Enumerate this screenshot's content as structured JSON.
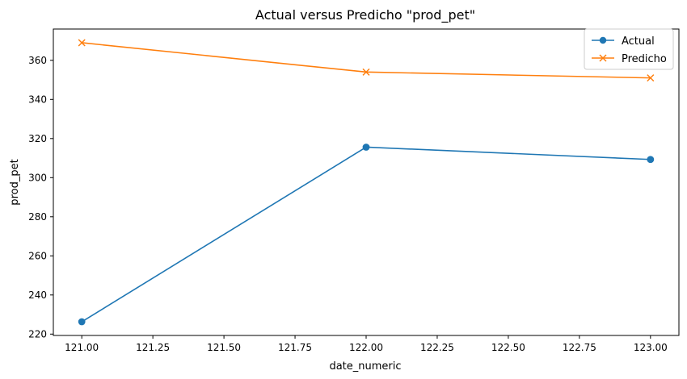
{
  "chart_data": {
    "type": "line",
    "title": "Actual versus Predicho \"prod_pet\"",
    "xlabel": "date_numeric",
    "ylabel": "prod_pet",
    "x": [
      121.0,
      122.0,
      123.0
    ],
    "xlim": [
      120.9,
      123.1
    ],
    "ylim": [
      219.3,
      376.0
    ],
    "xticks": [
      121.0,
      121.25,
      121.5,
      121.75,
      122.0,
      122.25,
      122.5,
      122.75,
      123.0
    ],
    "xtick_labels": [
      "121.00",
      "121.25",
      "121.50",
      "121.75",
      "122.00",
      "122.25",
      "122.50",
      "122.75",
      "123.00"
    ],
    "yticks": [
      220,
      240,
      260,
      280,
      300,
      320,
      340,
      360
    ],
    "ytick_labels": [
      "220",
      "240",
      "260",
      "280",
      "300",
      "320",
      "340",
      "360"
    ],
    "grid": false,
    "legend_position": "top-right",
    "series": [
      {
        "name": "Actual",
        "values": [
          226.3,
          315.6,
          309.3
        ],
        "color": "#1f77b4",
        "marker": "circle"
      },
      {
        "name": "Predicho",
        "values": [
          369.0,
          354.0,
          351.0
        ],
        "color": "#ff7f0e",
        "marker": "x"
      }
    ]
  }
}
